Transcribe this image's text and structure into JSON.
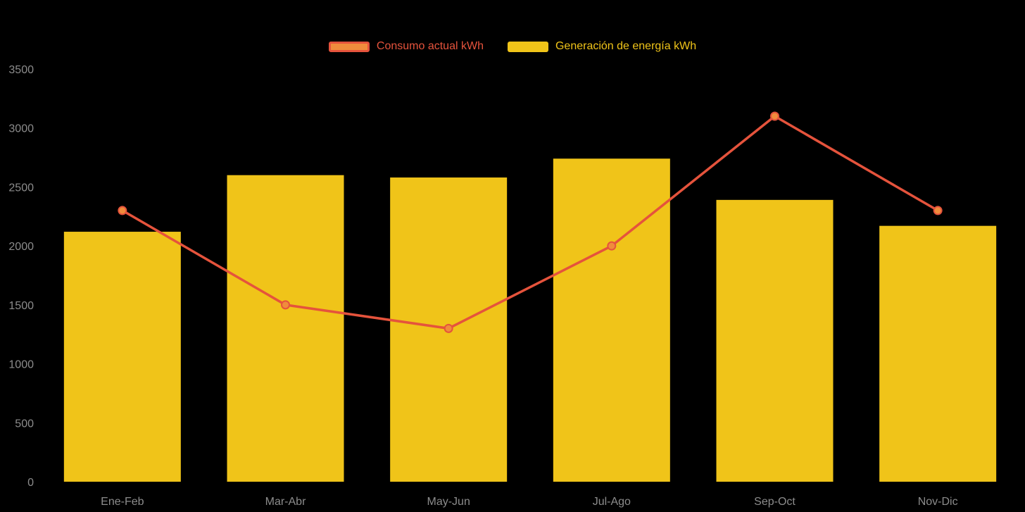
{
  "chart_data": {
    "type": "combo",
    "categories": [
      "Ene-Feb",
      "Mar-Abr",
      "May-Jun",
      "Jul-Ago",
      "Sep-Oct",
      "Nov-Dic"
    ],
    "series": [
      {
        "name": "Consumo actual kWh",
        "type": "line",
        "color": "#E5533C",
        "point_fill": "#F08C3C",
        "values": [
          2300,
          1500,
          1300,
          2000,
          3100,
          2300
        ]
      },
      {
        "name": "Generación de energía kWh",
        "type": "bar",
        "color": "#F0C419",
        "values": [
          2120,
          2600,
          2580,
          2740,
          2390,
          2170
        ]
      }
    ],
    "ylim": [
      0,
      3500
    ],
    "yticks": [
      0,
      500,
      1000,
      1500,
      2000,
      2500,
      3000,
      3500
    ],
    "legend_position": "top",
    "grid": false,
    "background": "#000000",
    "axis_text_color": "#8C8C8C"
  }
}
